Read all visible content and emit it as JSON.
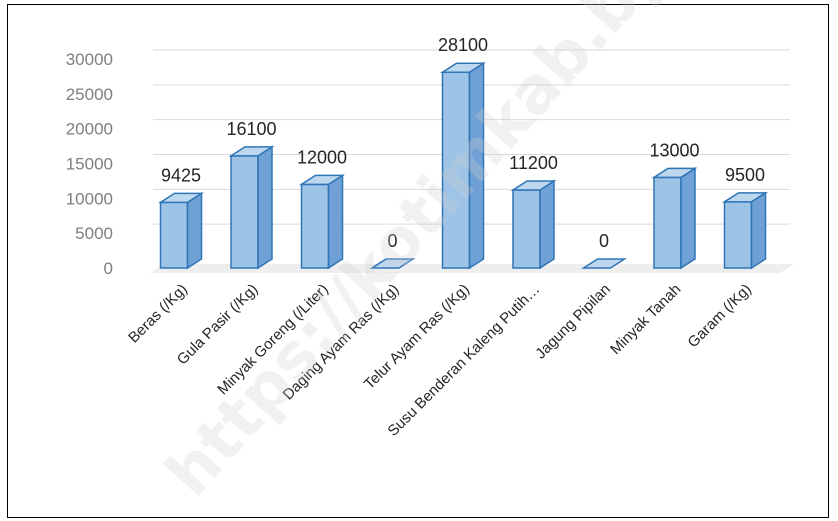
{
  "watermark": "https://kotimkab.bps.go.id",
  "colors": {
    "bar_front": "#9dc3e6",
    "bar_top": "#bdd7ee",
    "bar_side": "#6fa0d6",
    "bar_edge": "#2e75b6",
    "grid": "#d9d9d9",
    "floor": "#eeeeee"
  },
  "chart_data": {
    "type": "bar",
    "style": "3d-column",
    "categories": [
      "Beras (/Kg)",
      "Gula Pasir (/Kg)",
      "Minyak Goreng (/Liter)",
      "Daging Ayam Ras (/Kg)",
      "Telur Ayam Ras (/Kg)",
      "Susu Benderan Kaleng Putih…",
      "Jagung Pipilan",
      "Minyak Tanah",
      "Garam (/Kg)"
    ],
    "values": [
      9425,
      16100,
      12000,
      0,
      28100,
      11200,
      0,
      13000,
      9500
    ],
    "data_labels": [
      "9425",
      "16100",
      "12000",
      "0",
      "28100",
      "11200",
      "0",
      "13000",
      "9500"
    ],
    "yticks": [
      0,
      5000,
      10000,
      15000,
      20000,
      25000,
      30000
    ],
    "ylim": [
      0,
      30000
    ],
    "grid": true,
    "legend": "none",
    "title": "",
    "xlabel": "",
    "ylabel": ""
  }
}
